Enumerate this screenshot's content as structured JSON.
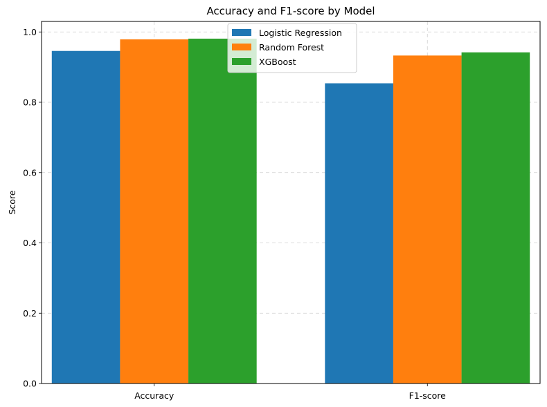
{
  "chart_data": {
    "type": "bar",
    "title": "Accuracy and F1-score by Model",
    "xlabel": "",
    "ylabel": "Score",
    "categories": [
      "Accuracy",
      "F1-score"
    ],
    "series": [
      {
        "name": "Logistic Regression",
        "color": "#1f77b4",
        "values": [
          0.946,
          0.854
        ]
      },
      {
        "name": "Random Forest",
        "color": "#ff7f0e",
        "values": [
          0.979,
          0.933
        ]
      },
      {
        "name": "XGBoost",
        "color": "#2ca02c",
        "values": [
          0.981,
          0.942
        ]
      }
    ],
    "ylim": [
      0,
      1.03
    ],
    "yticks": [
      0.0,
      0.2,
      0.4,
      0.6,
      0.8,
      1.0
    ],
    "ytick_labels": [
      "0.0",
      "0.2",
      "0.4",
      "0.6",
      "0.8",
      "1.0"
    ],
    "grid": true,
    "legend_position": "top-center"
  }
}
